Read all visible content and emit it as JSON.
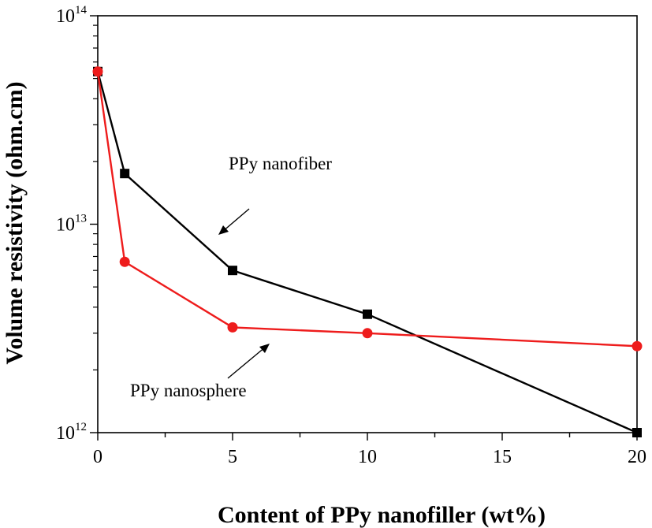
{
  "chart_data": {
    "type": "line",
    "title": "",
    "xlabel": "Content of PPy nanofiller (wt%)",
    "ylabel": "Volume resistivity (ohm.cm)",
    "xscale": "linear",
    "yscale": "log",
    "xlim": [
      0,
      20
    ],
    "ylim": [
      1000000000000.0,
      100000000000000.0
    ],
    "x_ticks": [
      0,
      5,
      10,
      15,
      20
    ],
    "x_tick_labels": [
      "0",
      "5",
      "10",
      "15",
      "20"
    ],
    "y_ticks": [
      {
        "value": 1000000000000.0,
        "base": "10",
        "exp": "12"
      },
      {
        "value": 10000000000000.0,
        "base": "10",
        "exp": "13"
      },
      {
        "value": 100000000000000.0,
        "base": "10",
        "exp": "14"
      }
    ],
    "series": [
      {
        "name": "PPy nanofiber",
        "color": "#000000",
        "marker": "square",
        "x": [
          0,
          1,
          5,
          10,
          20
        ],
        "y": [
          54000000000000.0,
          17500000000000.0,
          6000000000000.0,
          3700000000000.0,
          1000000000000.0
        ]
      },
      {
        "name": "PPy nanosphere",
        "color": "#ee1c1c",
        "marker": "circle",
        "x": [
          0,
          1,
          5,
          10,
          20
        ],
        "y": [
          54000000000000.0,
          6600000000000.0,
          3200000000000.0,
          3000000000000.0,
          2600000000000.0
        ]
      }
    ],
    "annotations": [
      {
        "text": "PPy nanofiber",
        "series": "PPy nanofiber"
      },
      {
        "text": "PPy nanosphere",
        "series": "PPy nanosphere"
      }
    ],
    "grid": false,
    "legend": "none"
  }
}
